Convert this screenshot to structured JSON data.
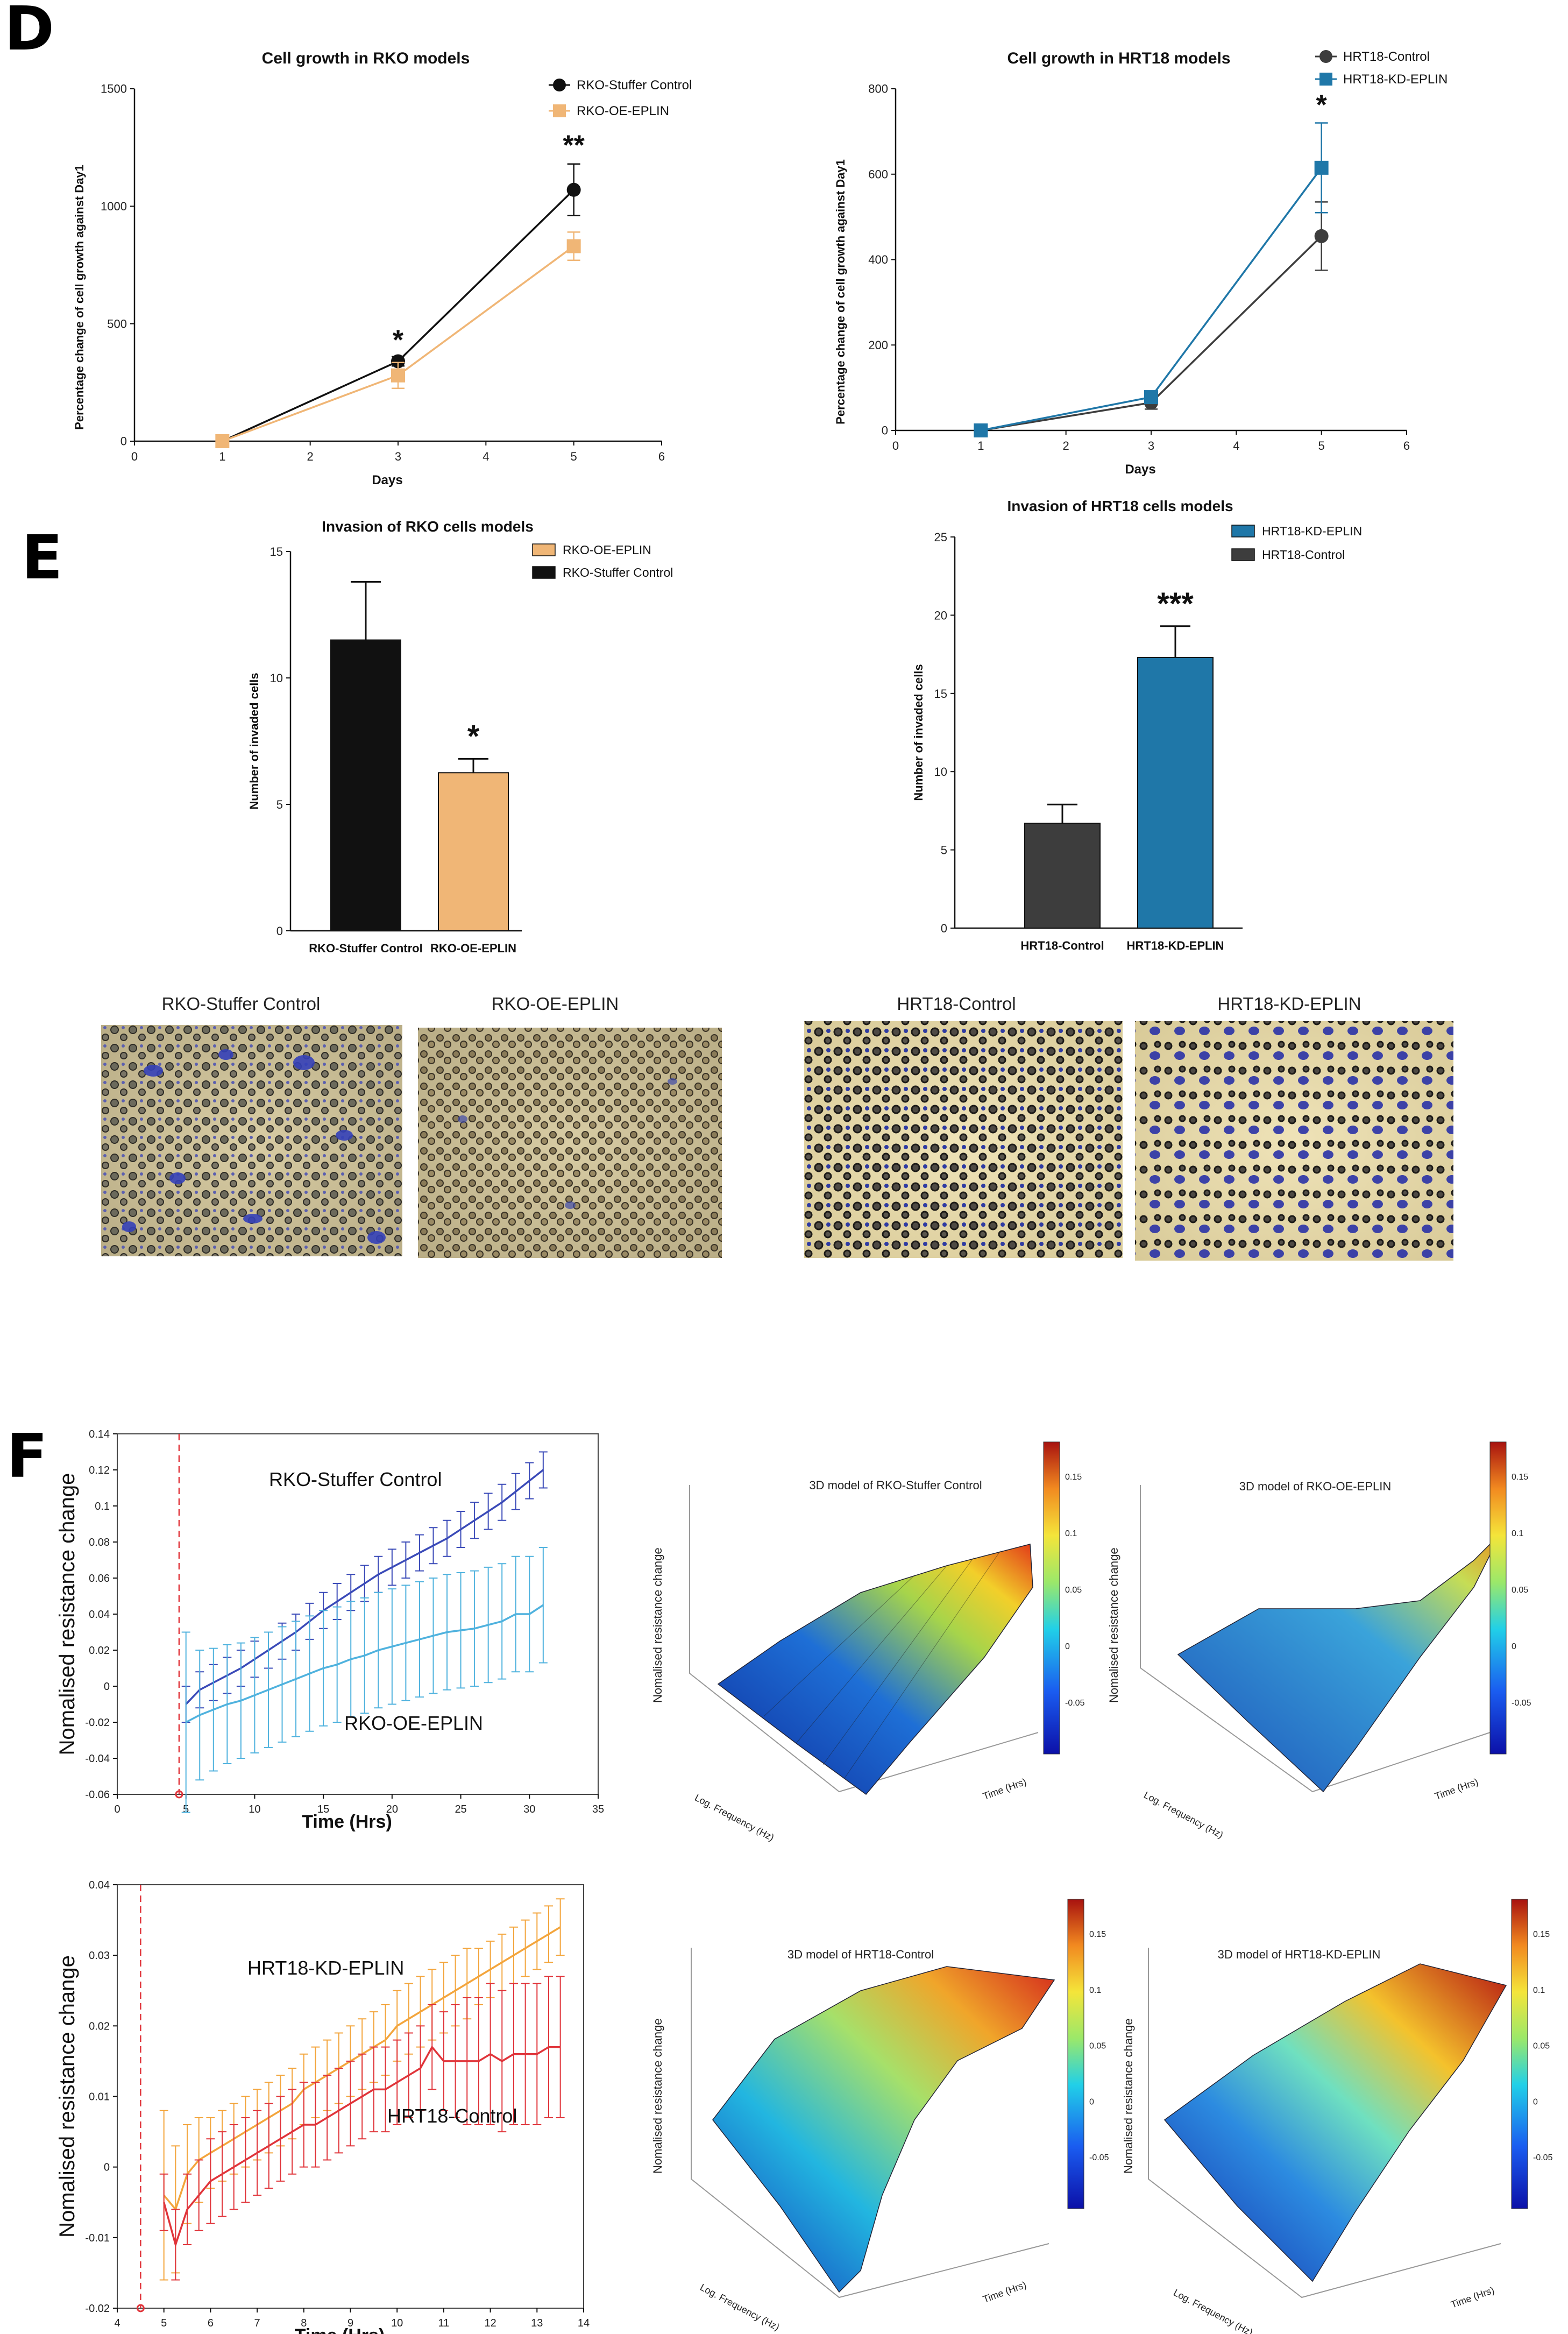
{
  "panels": {
    "d": "D",
    "e": "E",
    "f": "F"
  },
  "colors": {
    "black": "#111111",
    "peach": "#f0b676",
    "peach_dark": "#e79a4a",
    "grey": "#3d3d3d",
    "teal": "#1f77a8",
    "navy": "#3a4ab8",
    "sky": "#4fb2de",
    "orange": "#f3a53c",
    "red": "#e0343a"
  },
  "images": {
    "rko_control": "RKO-Stuffer Control",
    "rko_oe": "RKO-OE-EPLIN",
    "hrt_control": "HRT18-Control",
    "hrt_kd": "HRT18-KD-EPLIN"
  },
  "surfaces": {
    "t1": "3D model of RKO-Stuffer Control",
    "t2": "3D model of RKO-OE-EPLIN",
    "t3": "3D model of HRT18-Control",
    "t4": "3D model of HRT18-KD-EPLIN",
    "zlabel": "Nomalised resistance change",
    "freq": "Log. Frequency (Hz)",
    "time": "Time (Hrs)",
    "cb1": [
      "0.15",
      "0.1",
      "0.05",
      "0",
      "-0.05"
    ],
    "cb4": [
      "0.15",
      "0.1",
      "0.05",
      "0",
      "-0.05"
    ]
  },
  "chart_data": [
    {
      "id": "growth_rko",
      "type": "line",
      "title": "Cell growth in RKO models",
      "xlabel": "Days",
      "ylabel": "Percentage change of cell growth against Day1",
      "xlim": [
        0,
        6
      ],
      "ylim": [
        0,
        1500
      ],
      "xticks": [
        0,
        1,
        2,
        3,
        4,
        5,
        6
      ],
      "yticks": [
        0,
        500,
        1000,
        1500
      ],
      "series": [
        {
          "name": "RKO-Stuffer Control",
          "color": "#111111",
          "marker": "circle",
          "x": [
            1,
            3,
            5
          ],
          "y": [
            0,
            340,
            1070
          ],
          "err": [
            0,
            20,
            110
          ]
        },
        {
          "name": "RKO-OE-EPLIN",
          "color": "#f0b676",
          "marker": "square",
          "x": [
            1,
            3,
            5
          ],
          "y": [
            0,
            280,
            830
          ],
          "err": [
            0,
            55,
            60
          ]
        }
      ],
      "annotations": [
        {
          "x": 3,
          "y": 390,
          "text": "*"
        },
        {
          "x": 5,
          "y": 1220,
          "text": "**"
        }
      ]
    },
    {
      "id": "growth_hrt",
      "type": "line",
      "title": "Cell growth in HRT18 models",
      "xlabel": "Days",
      "ylabel": "Percentage change of cell growth against Day1",
      "xlim": [
        0,
        6
      ],
      "ylim": [
        0,
        800
      ],
      "xticks": [
        0,
        1,
        2,
        3,
        4,
        5,
        6
      ],
      "yticks": [
        0,
        200,
        400,
        600,
        800
      ],
      "series": [
        {
          "name": "HRT18-Control",
          "color": "#3d3d3d",
          "marker": "circle",
          "x": [
            1,
            3,
            5
          ],
          "y": [
            0,
            65,
            455
          ],
          "err": [
            0,
            15,
            80
          ]
        },
        {
          "name": "HRT18-KD-EPLIN",
          "color": "#1f77a8",
          "marker": "square",
          "x": [
            1,
            3,
            5
          ],
          "y": [
            0,
            78,
            615
          ],
          "err": [
            0,
            10,
            105
          ]
        }
      ],
      "annotations": [
        {
          "x": 5,
          "y": 740,
          "text": "*"
        }
      ]
    },
    {
      "id": "invasion_rko",
      "type": "bar",
      "title": "Invasion of RKO cells models",
      "xlabel": "",
      "ylabel": "Number of invaded cells",
      "ylim": [
        0,
        15
      ],
      "yticks": [
        0,
        5,
        10,
        15
      ],
      "categories": [
        "RKO-Stuffer Control",
        "RKO-OE-EPLIN"
      ],
      "values": [
        11.5,
        6.25
      ],
      "err": [
        2.3,
        0.55
      ],
      "colors": [
        "#111111",
        "#f0b676"
      ],
      "legend": [
        {
          "name": "RKO-OE-EPLIN",
          "color": "#f0b676"
        },
        {
          "name": "RKO-Stuffer Control",
          "color": "#111111"
        }
      ],
      "annotations": [
        {
          "index": 1,
          "text": "*"
        }
      ]
    },
    {
      "id": "invasion_hrt",
      "type": "bar",
      "title": "Invasion of HRT18 cells models",
      "xlabel": "",
      "ylabel": "Number of invaded cells",
      "ylim": [
        0,
        25
      ],
      "yticks": [
        0,
        5,
        10,
        15,
        20,
        25
      ],
      "categories": [
        "HRT18-Control",
        "HRT18-KD-EPLIN"
      ],
      "values": [
        6.7,
        17.3
      ],
      "err": [
        1.2,
        2.0
      ],
      "colors": [
        "#3d3d3d",
        "#1f77a8"
      ],
      "legend": [
        {
          "name": "HRT18-KD-EPLIN",
          "color": "#1f77a8"
        },
        {
          "name": "HRT18-Control",
          "color": "#3d3d3d"
        }
      ],
      "annotations": [
        {
          "index": 1,
          "text": "***"
        }
      ]
    },
    {
      "id": "ecis_rko",
      "type": "line",
      "title": "",
      "xlabel": "Time (Hrs)",
      "ylabel": "Nomalised resistance change",
      "xlim": [
        0,
        35
      ],
      "ylim": [
        -0.06,
        0.14
      ],
      "xticks": [
        0,
        5,
        10,
        15,
        20,
        25,
        30,
        35
      ],
      "yticks": [
        -0.06,
        -0.04,
        -0.02,
        0,
        0.02,
        0.04,
        0.06,
        0.08,
        0.1,
        0.12,
        0.14
      ],
      "vline": 4.5,
      "series": [
        {
          "name": "RKO-Stuffer Control",
          "label_text": "RKO-Stuffer Control",
          "color": "#3a4ab8",
          "x": [
            5,
            6,
            7,
            8,
            9,
            10,
            11,
            12,
            13,
            14,
            15,
            16,
            17,
            18,
            19,
            20,
            21,
            22,
            23,
            24,
            25,
            26,
            27,
            28,
            29,
            30,
            31
          ],
          "y": [
            -0.01,
            -0.002,
            0.002,
            0.006,
            0.01,
            0.015,
            0.02,
            0.025,
            0.03,
            0.036,
            0.042,
            0.047,
            0.052,
            0.057,
            0.062,
            0.066,
            0.07,
            0.074,
            0.078,
            0.082,
            0.087,
            0.092,
            0.097,
            0.102,
            0.108,
            0.114,
            0.12
          ],
          "err": [
            0.01,
            0.01,
            0.01,
            0.01,
            0.01,
            0.01,
            0.01,
            0.01,
            0.01,
            0.01,
            0.01,
            0.01,
            0.01,
            0.01,
            0.01,
            0.01,
            0.01,
            0.01,
            0.01,
            0.01,
            0.01,
            0.01,
            0.01,
            0.01,
            0.01,
            0.01,
            0.01
          ]
        },
        {
          "name": "RKO-OE-EPLIN",
          "label_text": "RKO-OE-EPLIN",
          "color": "#4fb2de",
          "x": [
            5,
            6,
            7,
            8,
            9,
            10,
            11,
            12,
            13,
            14,
            15,
            16,
            17,
            18,
            19,
            20,
            21,
            22,
            23,
            24,
            25,
            26,
            27,
            28,
            29,
            30,
            31
          ],
          "y": [
            -0.02,
            -0.016,
            -0.013,
            -0.01,
            -0.008,
            -0.005,
            -0.002,
            0.001,
            0.004,
            0.007,
            0.01,
            0.012,
            0.015,
            0.017,
            0.02,
            0.022,
            0.024,
            0.026,
            0.028,
            0.03,
            0.031,
            0.032,
            0.034,
            0.036,
            0.04,
            0.04,
            0.045
          ],
          "err": [
            0.05,
            0.036,
            0.034,
            0.033,
            0.032,
            0.032,
            0.032,
            0.032,
            0.032,
            0.032,
            0.032,
            0.032,
            0.032,
            0.032,
            0.032,
            0.032,
            0.032,
            0.032,
            0.032,
            0.032,
            0.032,
            0.032,
            0.032,
            0.032,
            0.032,
            0.032,
            0.032
          ]
        }
      ]
    },
    {
      "id": "ecis_hrt",
      "type": "line",
      "title": "",
      "xlabel": "Time (Hrs)",
      "ylabel": "Nomalised resistance change",
      "xlim": [
        4,
        14
      ],
      "ylim": [
        -0.02,
        0.04
      ],
      "xticks": [
        4,
        5,
        6,
        7,
        8,
        9,
        10,
        11,
        12,
        13,
        14
      ],
      "yticks": [
        -0.02,
        -0.01,
        0,
        0.01,
        0.02,
        0.03,
        0.04
      ],
      "vline": 4.5,
      "series": [
        {
          "name": "HRT18-KD-EPLIN",
          "label_text": "HRT18-KD-EPLIN",
          "color": "#f3a53c",
          "x": [
            5,
            5.25,
            5.5,
            5.75,
            6,
            6.25,
            6.5,
            6.75,
            7,
            7.25,
            7.5,
            7.75,
            8,
            8.25,
            8.5,
            8.75,
            9,
            9.25,
            9.5,
            9.75,
            10,
            10.25,
            10.5,
            10.75,
            11,
            11.25,
            11.5,
            11.75,
            12,
            12.25,
            12.5,
            12.75,
            13,
            13.25,
            13.5
          ],
          "y": [
            -0.004,
            -0.006,
            -0.001,
            0.001,
            0.002,
            0.003,
            0.004,
            0.005,
            0.006,
            0.007,
            0.008,
            0.009,
            0.011,
            0.012,
            0.013,
            0.014,
            0.015,
            0.016,
            0.017,
            0.018,
            0.02,
            0.021,
            0.022,
            0.023,
            0.024,
            0.025,
            0.026,
            0.027,
            0.028,
            0.029,
            0.03,
            0.031,
            0.032,
            0.033,
            0.034
          ],
          "err": [
            0.012,
            0.009,
            0.007,
            0.006,
            0.005,
            0.005,
            0.005,
            0.005,
            0.005,
            0.005,
            0.005,
            0.005,
            0.005,
            0.005,
            0.005,
            0.005,
            0.005,
            0.005,
            0.005,
            0.005,
            0.005,
            0.005,
            0.005,
            0.005,
            0.005,
            0.005,
            0.005,
            0.004,
            0.004,
            0.004,
            0.004,
            0.004,
            0.004,
            0.004,
            0.004
          ]
        },
        {
          "name": "HRT18-Control",
          "label_text": "HRT18-Control",
          "color": "#e0343a",
          "x": [
            5,
            5.25,
            5.5,
            5.75,
            6,
            6.25,
            6.5,
            6.75,
            7,
            7.25,
            7.5,
            7.75,
            8,
            8.25,
            8.5,
            8.75,
            9,
            9.25,
            9.5,
            9.75,
            10,
            10.25,
            10.5,
            10.75,
            11,
            11.25,
            11.5,
            11.75,
            12,
            12.25,
            12.5,
            12.75,
            13,
            13.25,
            13.5
          ],
          "y": [
            -0.005,
            -0.011,
            -0.006,
            -0.004,
            -0.002,
            -0.001,
            0.0,
            0.001,
            0.002,
            0.003,
            0.004,
            0.005,
            0.006,
            0.006,
            0.007,
            0.008,
            0.009,
            0.01,
            0.011,
            0.011,
            0.012,
            0.013,
            0.014,
            0.017,
            0.015,
            0.015,
            0.015,
            0.015,
            0.016,
            0.015,
            0.016,
            0.016,
            0.016,
            0.017,
            0.017
          ],
          "err": [
            0.004,
            0.005,
            0.005,
            0.005,
            0.006,
            0.006,
            0.006,
            0.006,
            0.006,
            0.006,
            0.006,
            0.006,
            0.006,
            0.006,
            0.006,
            0.006,
            0.006,
            0.006,
            0.006,
            0.006,
            0.006,
            0.006,
            0.006,
            0.006,
            0.007,
            0.008,
            0.009,
            0.009,
            0.01,
            0.01,
            0.01,
            0.01,
            0.01,
            0.01,
            0.01
          ]
        }
      ]
    }
  ]
}
